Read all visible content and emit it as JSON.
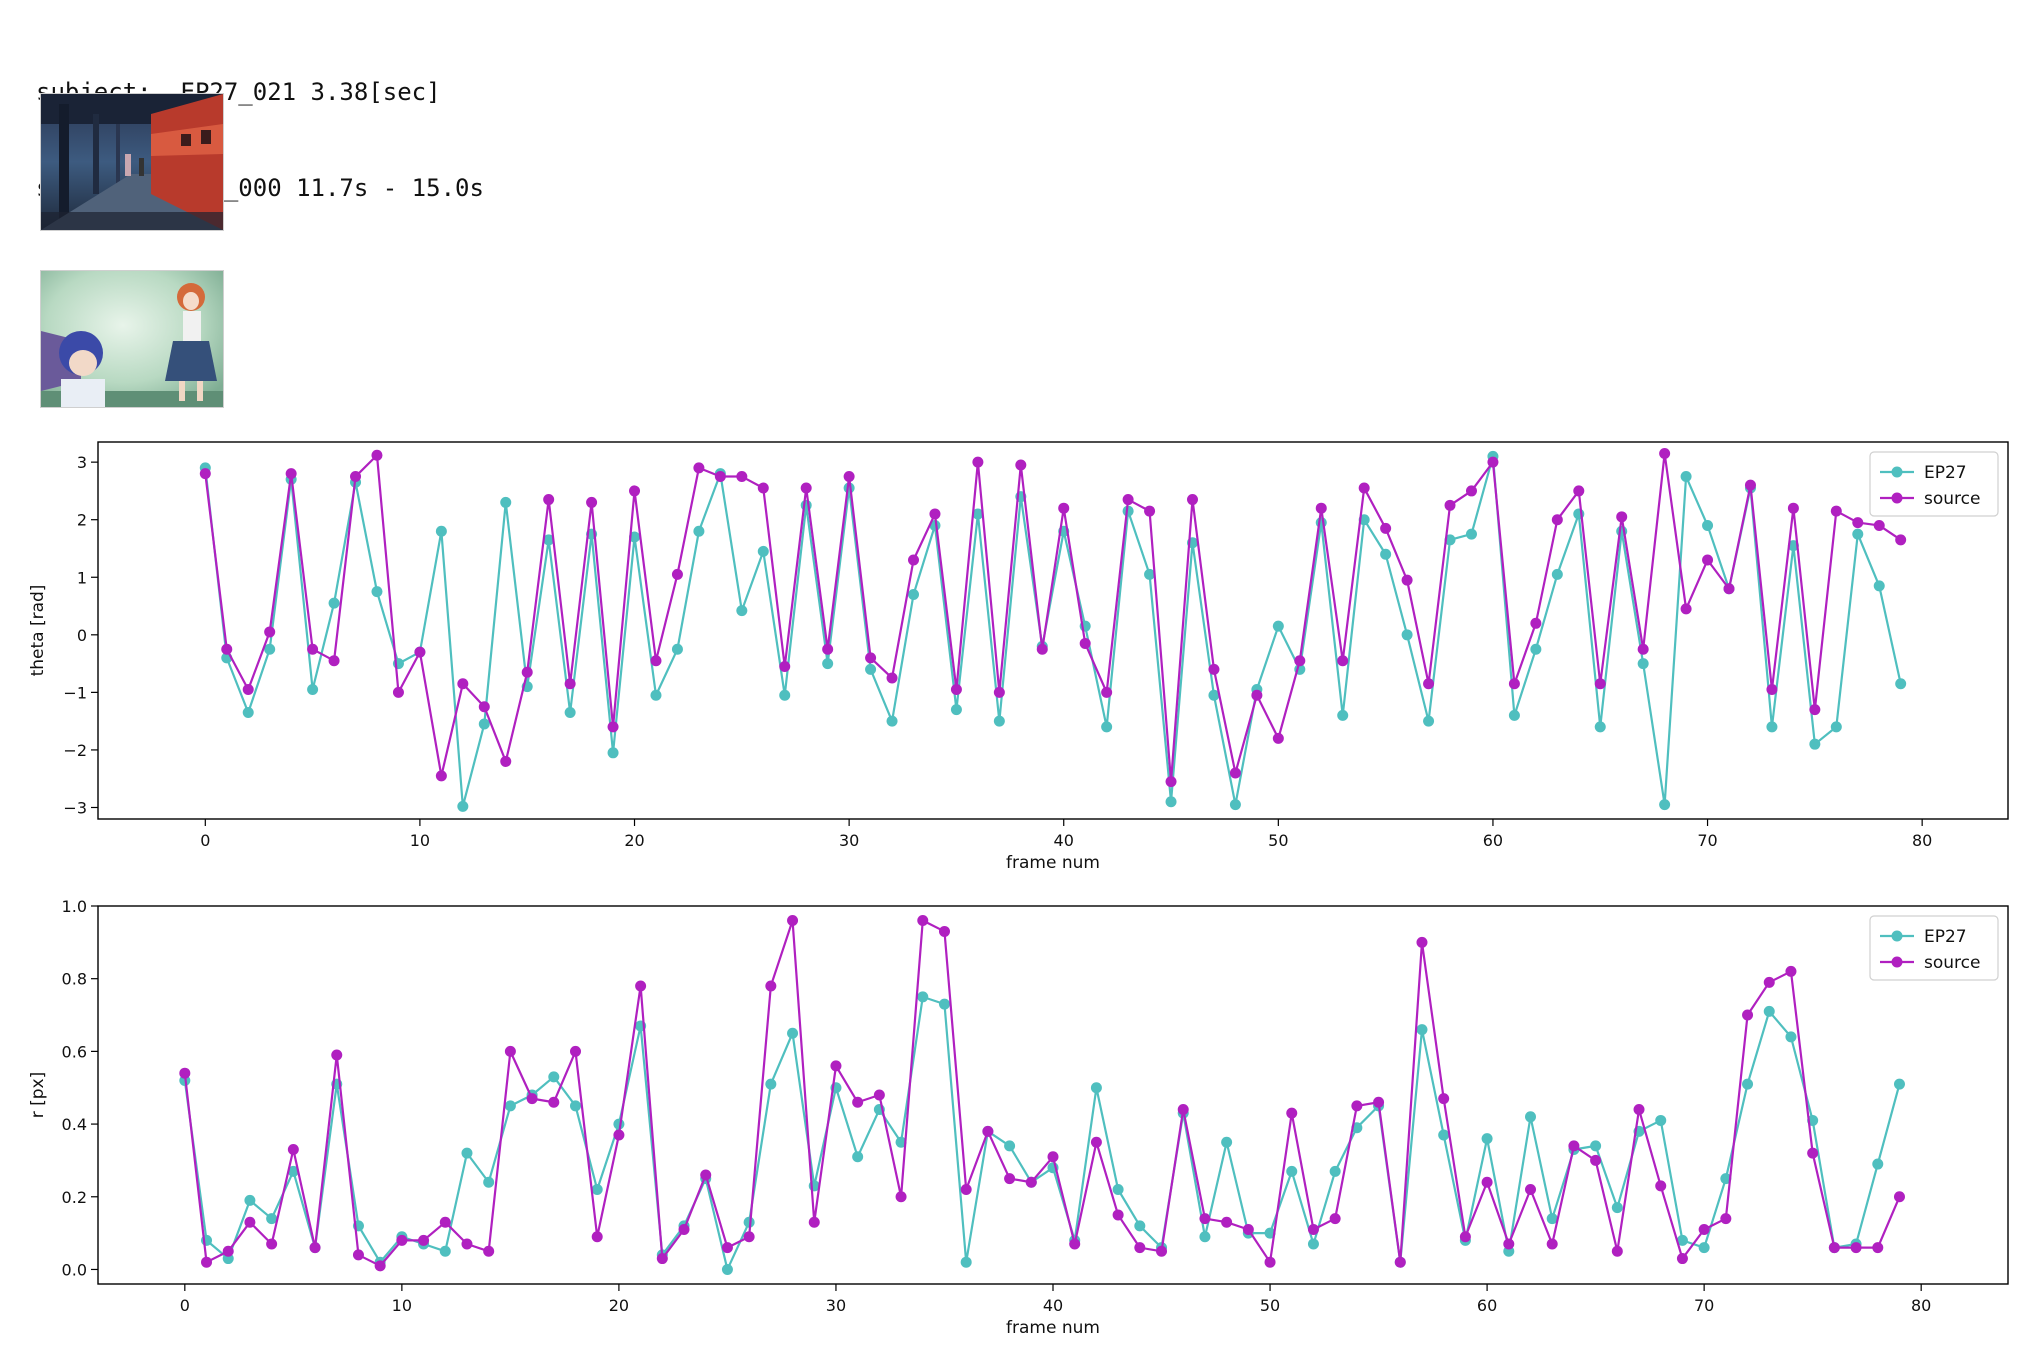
{
  "header": {
    "subject_line": "subject:  EP27_021 3.38[sec]",
    "source_line": "source:  EP22_000 11.7s - 15.0s"
  },
  "thumbnails": [
    {
      "label": "subject frame - train station platform"
    },
    {
      "label": "source frame - two characters in hallway"
    }
  ],
  "colors": {
    "EP27": "#4fbfbf",
    "source": "#b020c0"
  },
  "chart_data": [
    {
      "type": "line",
      "title": "",
      "xlabel": "frame num",
      "ylabel": "theta [rad]",
      "xlim": [
        -5,
        84
      ],
      "ylim": [
        -3.2,
        3.35
      ],
      "xticks": [
        0,
        10,
        20,
        30,
        40,
        50,
        60,
        70,
        80
      ],
      "yticks": [
        -3,
        -2,
        -1,
        0,
        1,
        2,
        3
      ],
      "grid": false,
      "legend": "top-right",
      "x": [
        0,
        1,
        2,
        3,
        4,
        5,
        6,
        7,
        8,
        9,
        10,
        11,
        12,
        13,
        14,
        15,
        16,
        17,
        18,
        19,
        20,
        21,
        22,
        23,
        24,
        25,
        26,
        27,
        28,
        29,
        30,
        31,
        32,
        33,
        34,
        35,
        36,
        37,
        38,
        39,
        40,
        41,
        42,
        43,
        44,
        45,
        46,
        47,
        48,
        49,
        50,
        51,
        52,
        53,
        54,
        55,
        56,
        57,
        58,
        59,
        60,
        61,
        62,
        63,
        64,
        65,
        66,
        67,
        68,
        69,
        70,
        71,
        72,
        73,
        74,
        75,
        76,
        77,
        78,
        79
      ],
      "series": [
        {
          "name": "EP27",
          "values": [
            2.9,
            -0.4,
            -1.35,
            -0.25,
            2.7,
            -0.95,
            0.55,
            2.65,
            0.75,
            -0.5,
            -0.3,
            1.8,
            -2.98,
            -1.55,
            2.3,
            -0.9,
            1.65,
            -1.35,
            1.75,
            -2.05,
            1.7,
            -1.05,
            -0.25,
            1.8,
            2.8,
            0.42,
            1.45,
            -1.05,
            2.25,
            -0.5,
            2.55,
            -0.6,
            -1.5,
            0.7,
            1.9,
            -1.3,
            2.1,
            -1.5,
            2.4,
            -0.2,
            1.8,
            0.15,
            -1.6,
            2.15,
            1.05,
            -2.9,
            1.6,
            -1.05,
            -2.95,
            -0.95,
            0.15,
            -0.6,
            1.95,
            -1.4,
            2.0,
            1.4,
            0.0,
            -1.5,
            1.65,
            1.75,
            3.1,
            -1.4,
            -0.25,
            1.05,
            2.1,
            -1.6,
            1.8,
            -0.5,
            -2.95,
            2.75,
            1.9,
            0.8,
            2.55,
            -1.6,
            1.55,
            -1.9,
            -1.6,
            1.75,
            0.85,
            -0.85
          ]
        },
        {
          "name": "source",
          "values": [
            2.8,
            -0.25,
            -0.95,
            0.05,
            2.8,
            -0.25,
            -0.45,
            2.75,
            3.12,
            -1.0,
            -0.3,
            -2.45,
            -0.85,
            -1.25,
            -2.2,
            -0.65,
            2.35,
            -0.85,
            2.3,
            -1.6,
            2.5,
            -0.45,
            1.05,
            2.9,
            2.75,
            2.75,
            2.55,
            -0.55,
            2.55,
            -0.25,
            2.75,
            -0.4,
            -0.75,
            1.3,
            2.1,
            -0.95,
            3.0,
            -1.0,
            2.95,
            -0.25,
            2.2,
            -0.15,
            -1.0,
            2.35,
            2.15,
            -2.55,
            2.35,
            -0.6,
            -2.4,
            -1.05,
            -1.8,
            -0.45,
            2.2,
            -0.45,
            2.55,
            1.85,
            0.95,
            -0.85,
            2.25,
            2.5,
            3.0,
            -0.85,
            0.2,
            2.0,
            2.5,
            -0.85,
            2.05,
            -0.25,
            3.15,
            0.45,
            1.3,
            0.8,
            2.6,
            -0.95,
            2.2,
            -1.3,
            2.15,
            1.95,
            1.9,
            1.65
          ]
        }
      ]
    },
    {
      "type": "line",
      "title": "",
      "xlabel": "frame num",
      "ylabel": "r [px]",
      "xlim": [
        -4,
        84
      ],
      "ylim": [
        -0.04,
        1.0
      ],
      "xticks": [
        0,
        10,
        20,
        30,
        40,
        50,
        60,
        70,
        80
      ],
      "yticks": [
        0.0,
        0.2,
        0.4,
        0.6,
        0.8,
        1.0
      ],
      "grid": false,
      "legend": "top-right",
      "x": [
        0,
        1,
        2,
        3,
        4,
        5,
        6,
        7,
        8,
        9,
        10,
        11,
        12,
        13,
        14,
        15,
        16,
        17,
        18,
        19,
        20,
        21,
        22,
        23,
        24,
        25,
        26,
        27,
        28,
        29,
        30,
        31,
        32,
        33,
        34,
        35,
        36,
        37,
        38,
        39,
        40,
        41,
        42,
        43,
        44,
        45,
        46,
        47,
        48,
        49,
        50,
        51,
        52,
        53,
        54,
        55,
        56,
        57,
        58,
        59,
        60,
        61,
        62,
        63,
        64,
        65,
        66,
        67,
        68,
        69,
        70,
        71,
        72,
        73,
        74,
        75,
        76,
        77,
        78,
        79
      ],
      "series": [
        {
          "name": "EP27",
          "values": [
            0.52,
            0.08,
            0.03,
            0.19,
            0.14,
            0.27,
            0.06,
            0.51,
            0.12,
            0.02,
            0.09,
            0.07,
            0.05,
            0.32,
            0.24,
            0.45,
            0.48,
            0.53,
            0.45,
            0.22,
            0.4,
            0.67,
            0.04,
            0.12,
            0.25,
            0.0,
            0.13,
            0.51,
            0.65,
            0.23,
            0.5,
            0.31,
            0.44,
            0.35,
            0.75,
            0.73,
            0.02,
            0.38,
            0.34,
            0.24,
            0.28,
            0.08,
            0.5,
            0.22,
            0.12,
            0.06,
            0.43,
            0.09,
            0.35,
            0.1,
            0.1,
            0.27,
            0.07,
            0.27,
            0.39,
            0.45,
            0.02,
            0.66,
            0.37,
            0.08,
            0.36,
            0.05,
            0.42,
            0.14,
            0.33,
            0.34,
            0.17,
            0.38,
            0.41,
            0.08,
            0.06,
            0.25,
            0.51,
            0.71,
            0.64,
            0.41,
            0.06,
            0.07,
            0.29,
            0.51
          ]
        },
        {
          "name": "source",
          "values": [
            0.54,
            0.02,
            0.05,
            0.13,
            0.07,
            0.33,
            0.06,
            0.59,
            0.04,
            0.01,
            0.08,
            0.08,
            0.13,
            0.07,
            0.05,
            0.6,
            0.47,
            0.46,
            0.6,
            0.09,
            0.37,
            0.78,
            0.03,
            0.11,
            0.26,
            0.06,
            0.09,
            0.78,
            0.96,
            0.13,
            0.56,
            0.46,
            0.48,
            0.2,
            0.96,
            0.93,
            0.22,
            0.38,
            0.25,
            0.24,
            0.31,
            0.07,
            0.35,
            0.15,
            0.06,
            0.05,
            0.44,
            0.14,
            0.13,
            0.11,
            0.02,
            0.43,
            0.11,
            0.14,
            0.45,
            0.46,
            0.02,
            0.9,
            0.47,
            0.09,
            0.24,
            0.07,
            0.22,
            0.07,
            0.34,
            0.3,
            0.05,
            0.44,
            0.23,
            0.03,
            0.11,
            0.14,
            0.7,
            0.79,
            0.82,
            0.32,
            0.06,
            0.06,
            0.06,
            0.2
          ]
        }
      ]
    }
  ]
}
